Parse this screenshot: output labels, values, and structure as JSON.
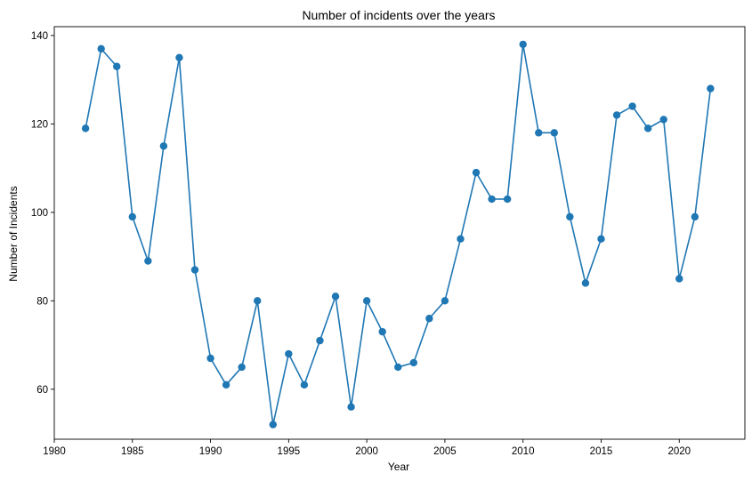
{
  "chart_data": {
    "type": "line",
    "title": "Number of incidents over the years",
    "xlabel": "Year",
    "ylabel": "Number of Incidents",
    "xlim": [
      1980,
      2024.2
    ],
    "ylim": [
      48.7,
      142
    ],
    "x_ticks": [
      1980,
      1985,
      1990,
      1995,
      2000,
      2005,
      2010,
      2015,
      2020
    ],
    "y_ticks": [
      60,
      80,
      100,
      120,
      140
    ],
    "grid": false,
    "legend": "none",
    "series": [
      {
        "color": "#1f77b4",
        "marker": "circle",
        "x": [
          1982,
          1983,
          1984,
          1985,
          1986,
          1987,
          1988,
          1989,
          1990,
          1991,
          1992,
          1993,
          1994,
          1995,
          1996,
          1997,
          1998,
          1999,
          2000,
          2001,
          2002,
          2003,
          2004,
          2005,
          2006,
          2007,
          2008,
          2009,
          2010,
          2011,
          2012,
          2013,
          2014,
          2015,
          2016,
          2017,
          2018,
          2019,
          2020,
          2021,
          2022
        ],
        "y": [
          119,
          137,
          133,
          99,
          89,
          115,
          135,
          87,
          67,
          61,
          65,
          80,
          52,
          68,
          61,
          71,
          81,
          56,
          80,
          73,
          65,
          66,
          76,
          80,
          94,
          109,
          103,
          103,
          138,
          118,
          118,
          99,
          84,
          94,
          122,
          124,
          119,
          121,
          85,
          99,
          128
        ]
      }
    ]
  }
}
